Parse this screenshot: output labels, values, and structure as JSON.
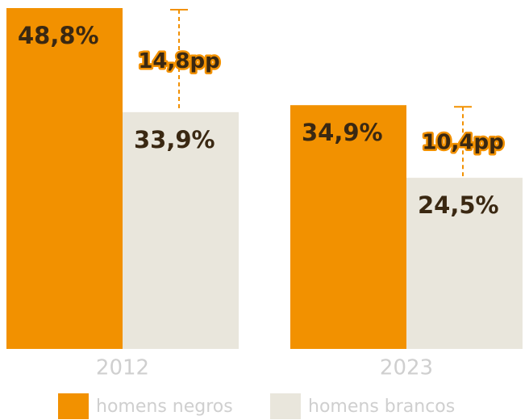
{
  "chart_data": {
    "type": "bar",
    "categories": [
      "2012",
      "2023"
    ],
    "series": [
      {
        "name": "homens negros",
        "color": "#f29100",
        "values": [
          48.8,
          34.9
        ],
        "value_labels": [
          "48,8%",
          "34,9%"
        ]
      },
      {
        "name": "homens brancos",
        "color": "#e9e6dc",
        "values": [
          33.9,
          24.5
        ],
        "value_labels": [
          "33,9%",
          "24,5%"
        ]
      }
    ],
    "annotations": [
      "14,8pp",
      "10,4pp"
    ],
    "annotation_color": "#f29100"
  }
}
